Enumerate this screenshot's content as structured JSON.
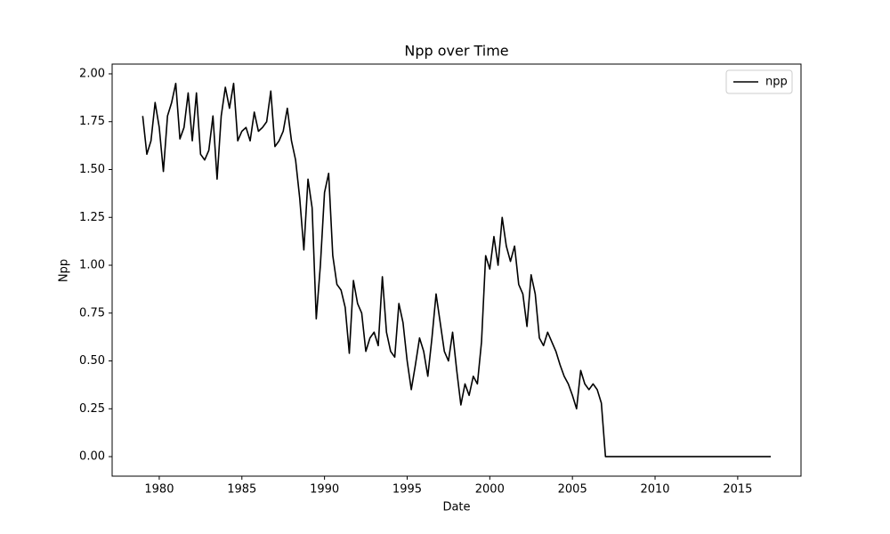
{
  "chart_data": {
    "type": "line",
    "title": "Npp over Time",
    "x_label": "Date",
    "y_label": "Npp",
    "x": [
      1979.0,
      1979.25,
      1979.5,
      1979.75,
      1980.0,
      1980.25,
      1980.5,
      1980.75,
      1981.0,
      1981.25,
      1981.5,
      1981.75,
      1982.0,
      1982.25,
      1982.5,
      1982.75,
      1983.0,
      1983.25,
      1983.5,
      1983.75,
      1984.0,
      1984.25,
      1984.5,
      1984.75,
      1985.0,
      1985.25,
      1985.5,
      1985.75,
      1986.0,
      1986.25,
      1986.5,
      1986.75,
      1987.0,
      1987.25,
      1987.5,
      1987.75,
      1988.0,
      1988.25,
      1988.5,
      1988.75,
      1989.0,
      1989.25,
      1989.5,
      1989.75,
      1990.0,
      1990.25,
      1990.5,
      1990.75,
      1991.0,
      1991.25,
      1991.5,
      1991.75,
      1992.0,
      1992.25,
      1992.5,
      1992.75,
      1993.0,
      1993.25,
      1993.5,
      1993.75,
      1994.0,
      1994.25,
      1994.5,
      1994.75,
      1995.0,
      1995.25,
      1995.5,
      1995.75,
      1996.0,
      1996.25,
      1996.5,
      1996.75,
      1997.0,
      1997.25,
      1997.5,
      1997.75,
      1998.0,
      1998.25,
      1998.5,
      1998.75,
      1999.0,
      1999.25,
      1999.5,
      1999.75,
      2000.0,
      2000.25,
      2000.5,
      2000.75,
      2001.0,
      2001.25,
      2001.5,
      2001.75,
      2002.0,
      2002.25,
      2002.5,
      2002.75,
      2003.0,
      2003.25,
      2003.5,
      2003.75,
      2004.0,
      2004.25,
      2004.5,
      2004.75,
      2005.0,
      2005.25,
      2005.5,
      2005.75,
      2006.0,
      2006.25,
      2006.5,
      2006.75,
      2007.0,
      2017.0
    ],
    "series": [
      {
        "name": "npp",
        "color": "#000000",
        "values": [
          1.78,
          1.58,
          1.65,
          1.85,
          1.72,
          1.49,
          1.78,
          1.85,
          1.95,
          1.66,
          1.72,
          1.9,
          1.65,
          1.9,
          1.58,
          1.55,
          1.6,
          1.78,
          1.45,
          1.78,
          1.93,
          1.82,
          1.95,
          1.65,
          1.7,
          1.72,
          1.65,
          1.8,
          1.7,
          1.72,
          1.75,
          1.91,
          1.62,
          1.65,
          1.7,
          1.82,
          1.65,
          1.55,
          1.35,
          1.08,
          1.45,
          1.3,
          0.72,
          1.0,
          1.38,
          1.48,
          1.05,
          0.9,
          0.87,
          0.78,
          0.54,
          0.92,
          0.8,
          0.75,
          0.55,
          0.62,
          0.65,
          0.58,
          0.94,
          0.65,
          0.55,
          0.52,
          0.8,
          0.7,
          0.5,
          0.35,
          0.48,
          0.62,
          0.55,
          0.42,
          0.62,
          0.85,
          0.7,
          0.55,
          0.5,
          0.65,
          0.45,
          0.27,
          0.38,
          0.32,
          0.42,
          0.38,
          0.6,
          1.05,
          0.98,
          1.15,
          1.0,
          1.25,
          1.1,
          1.02,
          1.1,
          0.9,
          0.85,
          0.68,
          0.95,
          0.85,
          0.62,
          0.58,
          0.65,
          0.6,
          0.55,
          0.48,
          0.42,
          0.38,
          0.32,
          0.25,
          0.45,
          0.38,
          0.35,
          0.38,
          0.35,
          0.28,
          0.0,
          0.0
        ]
      }
    ],
    "xlim": [
      1977.15,
      2018.83
    ],
    "ylim": [
      -0.102,
      2.051
    ],
    "xticks": [
      1980,
      1985,
      1990,
      1995,
      2000,
      2005,
      2010,
      2015
    ],
    "yticks": [
      {
        "value": 0,
        "label": "0.00"
      },
      {
        "value": 0.25,
        "label": "0.25"
      },
      {
        "value": 0.5,
        "label": "0.50"
      },
      {
        "value": 0.75,
        "label": "0.75"
      },
      {
        "value": 1,
        "label": "1.00"
      },
      {
        "value": 1.25,
        "label": "1.25"
      },
      {
        "value": 1.5,
        "label": "1.50"
      },
      {
        "value": 1.75,
        "label": "1.75"
      },
      {
        "value": 2,
        "label": "2.00"
      }
    ],
    "grid": false,
    "legend": "upper right"
  }
}
